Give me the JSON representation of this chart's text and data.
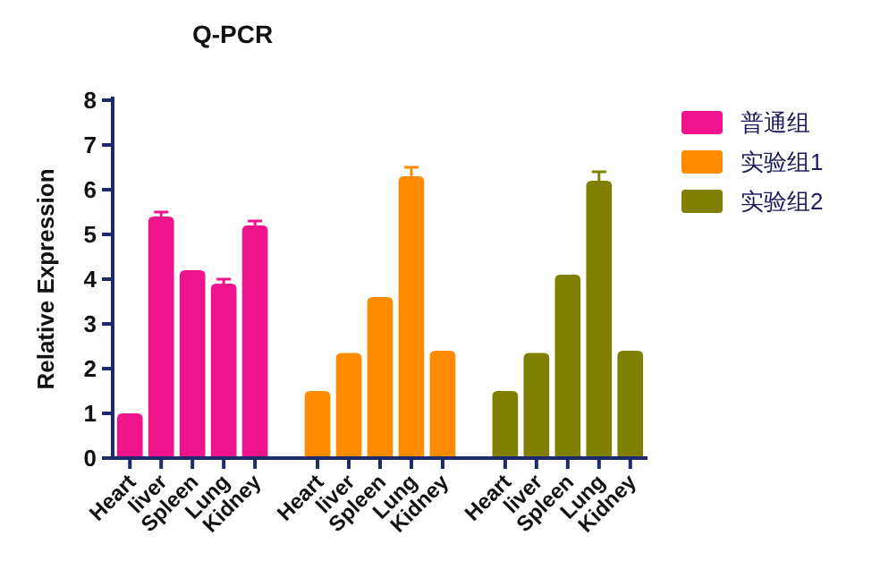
{
  "chart_data": {
    "type": "bar",
    "title": "Q-PCR",
    "ylabel": "Relative Expression",
    "categories": [
      "Heart",
      "liver",
      "Spleen",
      "Lung",
      "Kidney",
      null,
      "Heart",
      "liver",
      "Spleen",
      "Lung",
      "Kidney",
      null,
      "Heart",
      "liver",
      "Spleen",
      "Lung",
      "Kidney"
    ],
    "series": [
      {
        "name": "普通组",
        "color": "#f0148c",
        "values": [
          1.0,
          5.4,
          4.2,
          3.9,
          5.2,
          null,
          null,
          null,
          null,
          null,
          null,
          null,
          null,
          null,
          null,
          null,
          null
        ],
        "errors": [
          null,
          0.1,
          null,
          0.1,
          0.1,
          null,
          null,
          null,
          null,
          null,
          null,
          null,
          null,
          null,
          null,
          null,
          null
        ]
      },
      {
        "name": "实验组1",
        "color": "#ff8c00",
        "values": [
          null,
          null,
          null,
          null,
          null,
          null,
          1.5,
          2.35,
          3.6,
          6.3,
          2.4,
          null,
          null,
          null,
          null,
          null,
          null
        ],
        "errors": [
          null,
          null,
          null,
          null,
          null,
          null,
          null,
          null,
          null,
          0.2,
          null,
          null,
          null,
          null,
          null,
          null,
          null
        ]
      },
      {
        "name": "实验组2",
        "color": "#808000",
        "values": [
          null,
          null,
          null,
          null,
          null,
          null,
          null,
          null,
          null,
          null,
          null,
          null,
          1.5,
          2.35,
          4.1,
          6.2,
          2.4
        ],
        "errors": [
          null,
          null,
          null,
          null,
          null,
          null,
          null,
          null,
          null,
          null,
          null,
          null,
          null,
          null,
          null,
          0.2,
          null
        ]
      }
    ],
    "ylim": [
      0,
      8
    ],
    "yticks": [
      0,
      1,
      2,
      3,
      4,
      5,
      6,
      7,
      8
    ],
    "legend": "top right"
  }
}
